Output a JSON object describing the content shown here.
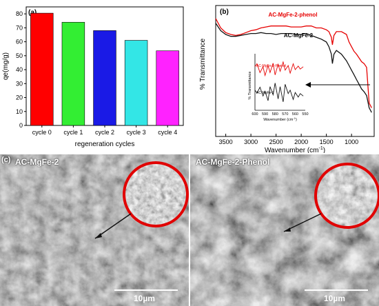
{
  "chart_data": [
    {
      "type": "bar",
      "panel_label": "(a)",
      "categories": [
        "cycle 0",
        "cycle 1",
        "cycle 2",
        "cycle 3",
        "cycle 4"
      ],
      "values": [
        80.5,
        74,
        68,
        61,
        53.5
      ],
      "colors": [
        "#ff0000",
        "#33ee33",
        "#1a1ae6",
        "#33e6e6",
        "#ff22ff"
      ],
      "xlabel": "regeneration cycles",
      "ylabel": "qe(mg/g)",
      "ylim": [
        0,
        85
      ],
      "yticks": [
        "0",
        "10",
        "20",
        "30",
        "40",
        "50",
        "60",
        "70",
        "80"
      ]
    },
    {
      "type": "line",
      "panel_label": "(b)",
      "xlabel": "Wavenumber (cm",
      "xlabel_sup": "-1",
      "xlabel_end": ")",
      "ylabel": "% Transmittance",
      "xlim": [
        3700,
        550
      ],
      "xticks": [
        "3500",
        "3000",
        "2500",
        "2000",
        "1500",
        "1000"
      ],
      "grid": false,
      "series": [
        {
          "name": "AC-MgFe-2-phenol",
          "color": "#e60000",
          "x": [
            3700,
            3600,
            3500,
            3400,
            3300,
            3200,
            3100,
            3000,
            2900,
            2800,
            2700,
            2600,
            2500,
            2400,
            2300,
            2200,
            2100,
            2000,
            1900,
            1800,
            1700,
            1600,
            1500,
            1450,
            1400,
            1380,
            1350,
            1300,
            1200,
            1100,
            1050,
            1000,
            950,
            900,
            850,
            800,
            750,
            700,
            650,
            600
          ],
          "y": [
            60,
            50,
            45,
            43,
            42,
            43,
            45,
            47,
            48,
            50,
            51,
            52,
            52,
            52,
            52,
            51,
            51,
            51,
            52,
            52,
            50,
            50,
            48,
            46,
            40,
            32,
            42,
            46,
            46,
            43,
            35,
            30,
            25,
            22,
            18,
            14,
            12,
            8,
            -30,
            -35
          ]
        },
        {
          "name": "AC-MgFe-2",
          "color": "#111111",
          "x": [
            3700,
            3600,
            3500,
            3400,
            3300,
            3200,
            3100,
            3000,
            2900,
            2800,
            2700,
            2600,
            2500,
            2400,
            2300,
            2200,
            2100,
            2000,
            1900,
            1800,
            1700,
            1600,
            1500,
            1450,
            1400,
            1380,
            1350,
            1300,
            1200,
            1100,
            1050,
            1000,
            950,
            900,
            850,
            800,
            750,
            700,
            650,
            600
          ],
          "y": [
            55,
            47,
            43,
            41,
            41,
            42,
            43,
            44,
            44,
            45,
            44,
            44,
            43,
            44,
            44,
            44,
            43,
            43,
            44,
            42,
            40,
            38,
            35,
            30,
            22,
            12,
            22,
            26,
            22,
            15,
            10,
            5,
            0,
            -5,
            -10,
            -15,
            -18,
            -22,
            -35,
            -40
          ]
        }
      ],
      "inset": {
        "type": "line",
        "xlabel": "Wavenumber (cm",
        "xlabel_sup": "-1",
        "xlabel_end": ")",
        "ylabel": "% Transmittance",
        "xlim": [
          600,
          550
        ],
        "xticks": [
          "600",
          "590",
          "580",
          "570",
          "560",
          "550"
        ],
        "series": [
          {
            "name": "AC-MgFe-2-Phenol",
            "color": "#e60000",
            "x": [
              600,
              598,
              595,
              592,
              590,
              587,
              585,
              582,
              580,
              577,
              575,
              572,
              570,
              567,
              565,
              562,
              560,
              557,
              555,
              552
            ],
            "y": [
              8,
              8.5,
              7,
              8,
              6.5,
              8.2,
              7,
              8.6,
              6.6,
              8.4,
              7.2,
              8.8,
              7.4,
              8.2,
              6.9,
              8.5,
              7.5,
              8.1,
              7.6,
              8.0
            ]
          },
          {
            "name": "AC-MgFe-2",
            "color": "#111111",
            "x": [
              600,
              598,
              595,
              592,
              590,
              587,
              585,
              582,
              580,
              577,
              575,
              572,
              570,
              567,
              565,
              562,
              560,
              557,
              555,
              552
            ],
            "y": [
              4,
              3.5,
              4.5,
              3,
              3.8,
              2.2,
              4.6,
              3.2,
              5.2,
              2.5,
              4.6,
              2.0,
              5.0,
              3.4,
              4.0,
              2.4,
              3.6,
              2.8,
              3.4,
              3.0
            ]
          }
        ]
      }
    }
  ],
  "panel_c": {
    "label": "(c)",
    "left": {
      "title": "AC-MgFe-2",
      "scale": "10µm"
    },
    "right": {
      "title": "AC-MgFe-2-Phenol",
      "scale": "10µm"
    }
  }
}
